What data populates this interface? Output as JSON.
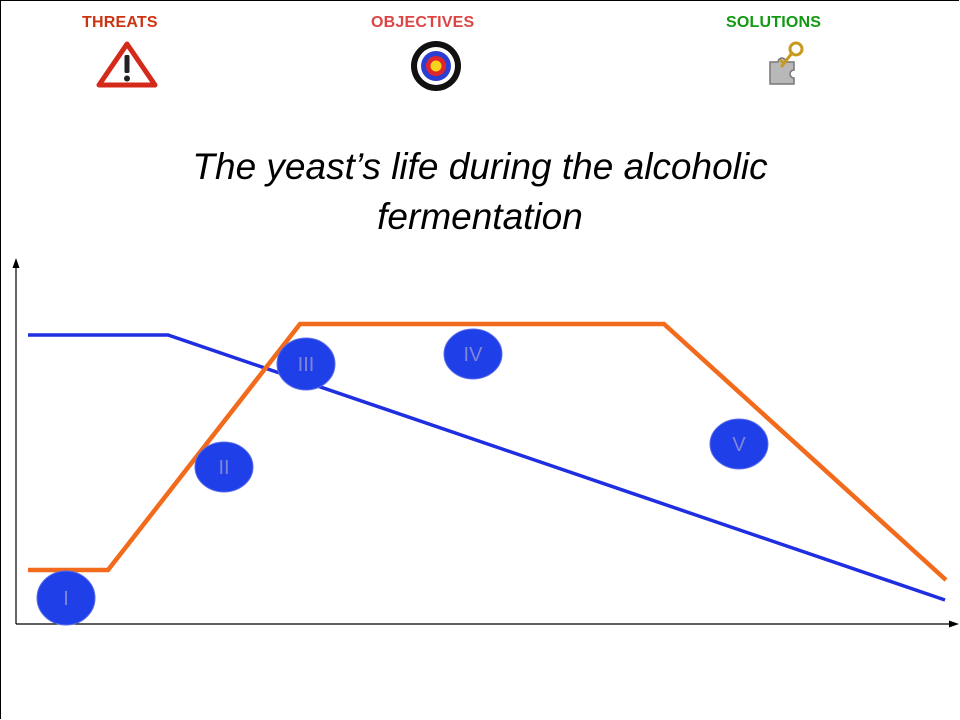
{
  "nav": {
    "threats": {
      "label": "THREATS",
      "color": "#cc3311",
      "icon": "warning-icon"
    },
    "objectives": {
      "label": "OBJECTIVES",
      "color": "#dd4444",
      "icon": "target-icon"
    },
    "solutions": {
      "label": "SOLUTIONS",
      "color": "#119911",
      "icon": "puzzle-key-icon"
    }
  },
  "title_line1": "The yeast’s life during the alcoholic",
  "title_line2": "fermentation",
  "colors": {
    "orange_line": "#f26a1b",
    "blue_line": "#1f2ee0",
    "stage_fill": "#1f3fe8",
    "stage_text": "#7f86d8"
  },
  "stages": [
    "I",
    "II",
    "III",
    "IV",
    "V"
  ]
}
